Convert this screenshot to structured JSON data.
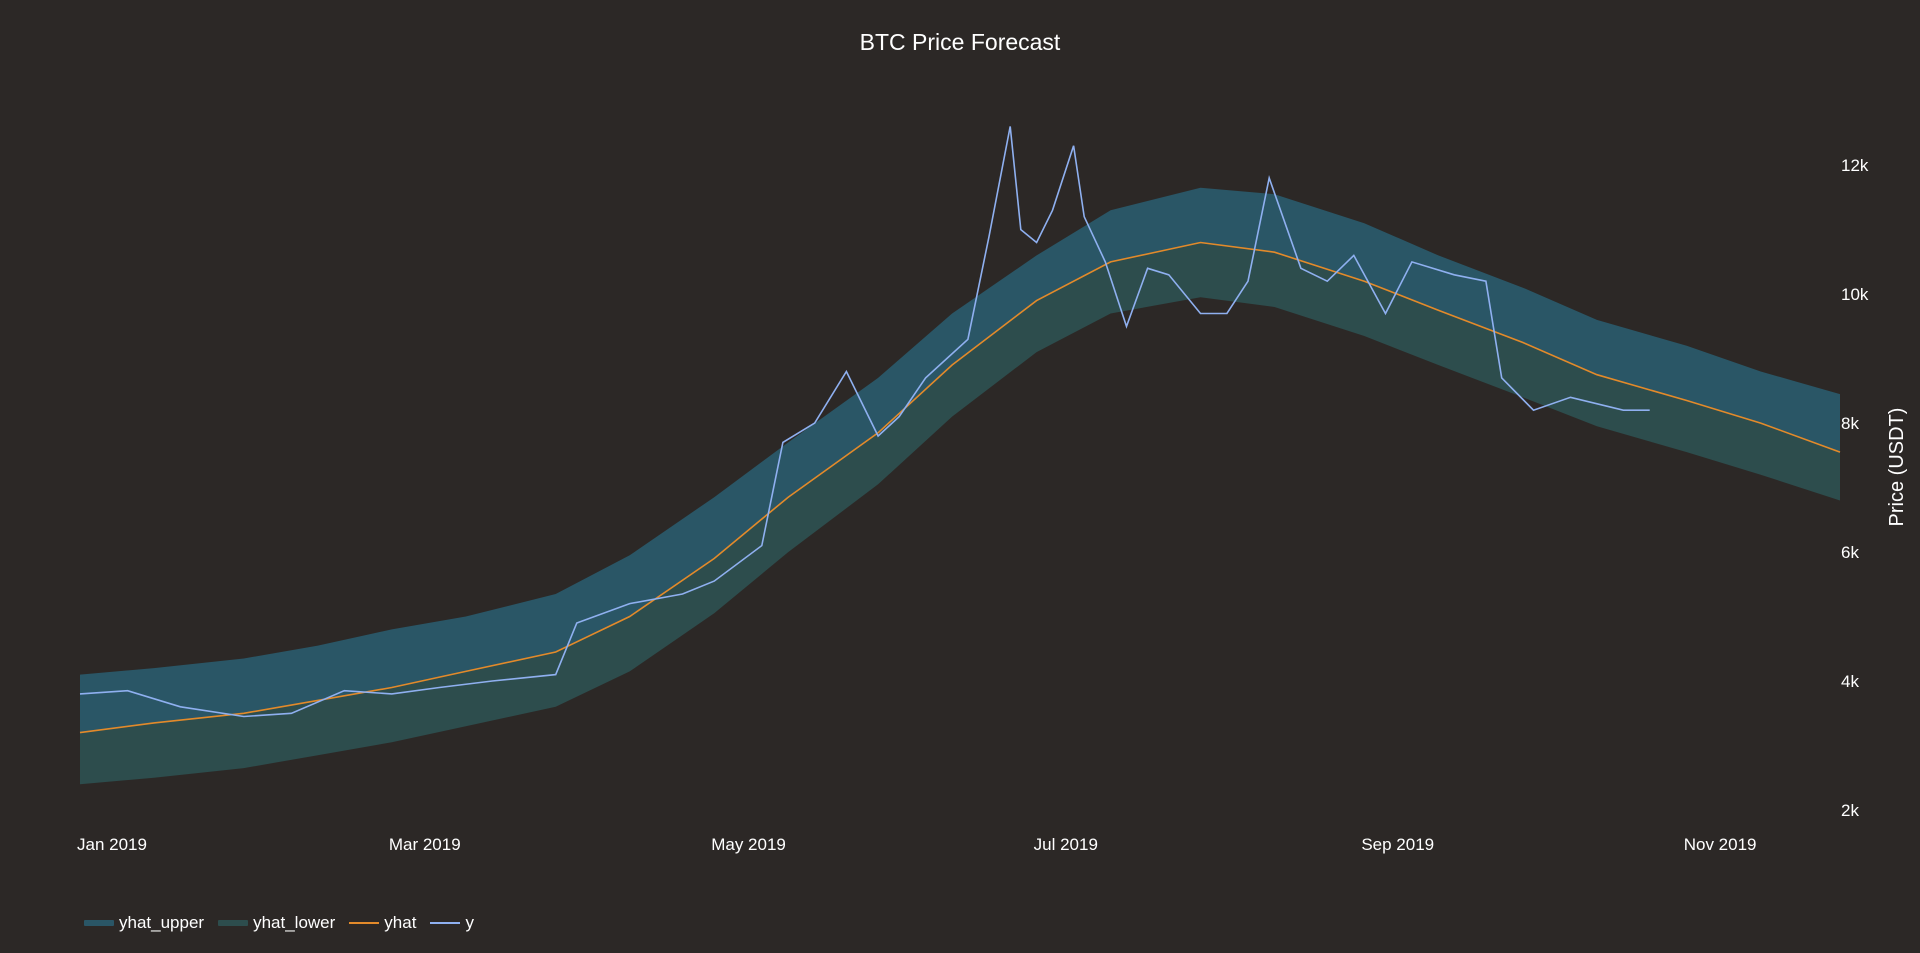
{
  "chart_data": {
    "type": "line",
    "title": "BTC Price Forecast",
    "xlabel": "",
    "ylabel": "Price (USDT)",
    "x_range": [
      "2019-01-01",
      "2019-11-30"
    ],
    "ylim": [
      2000,
      12700
    ],
    "x_ticks": [
      {
        "date": "2019-01-01",
        "label": "Jan 2019"
      },
      {
        "date": "2019-03-01",
        "label": "Mar 2019"
      },
      {
        "date": "2019-05-01",
        "label": "May 2019"
      },
      {
        "date": "2019-07-01",
        "label": "Jul 2019"
      },
      {
        "date": "2019-09-01",
        "label": "Sep 2019"
      },
      {
        "date": "2019-11-01",
        "label": "Nov 2019"
      }
    ],
    "y_ticks": [
      {
        "value": 2000,
        "label": "2k"
      },
      {
        "value": 4000,
        "label": "4k"
      },
      {
        "value": 6000,
        "label": "6k"
      },
      {
        "value": 8000,
        "label": "8k"
      },
      {
        "value": 10000,
        "label": "10k"
      },
      {
        "value": 12000,
        "label": "12k"
      }
    ],
    "y_axis_position": "right",
    "grid": false,
    "legend_position": "bottom-left",
    "series": [
      {
        "name": "yhat_upper",
        "kind": "band-top",
        "color": "#2a5666",
        "x": [
          "2019-01-01",
          "2019-01-15",
          "2019-02-01",
          "2019-02-15",
          "2019-03-01",
          "2019-03-15",
          "2019-04-01",
          "2019-04-15",
          "2019-05-01",
          "2019-05-15",
          "2019-06-01",
          "2019-06-15",
          "2019-07-01",
          "2019-07-15",
          "2019-08-01",
          "2019-08-15",
          "2019-09-01",
          "2019-09-15",
          "2019-10-01",
          "2019-10-15",
          "2019-11-01",
          "2019-11-15",
          "2019-11-30"
        ],
        "values": [
          4100,
          4200,
          4350,
          4550,
          4800,
          5000,
          5350,
          5950,
          6850,
          7700,
          8700,
          9700,
          10600,
          11300,
          11650,
          11550,
          11100,
          10600,
          10100,
          9600,
          9200,
          8800,
          8450
        ]
      },
      {
        "name": "yhat_lower",
        "kind": "band-bottom",
        "color": "#2d4d4d",
        "x": [
          "2019-01-01",
          "2019-01-15",
          "2019-02-01",
          "2019-02-15",
          "2019-03-01",
          "2019-03-15",
          "2019-04-01",
          "2019-04-15",
          "2019-05-01",
          "2019-05-15",
          "2019-06-01",
          "2019-06-15",
          "2019-07-01",
          "2019-07-15",
          "2019-08-01",
          "2019-08-15",
          "2019-09-01",
          "2019-09-15",
          "2019-10-01",
          "2019-10-15",
          "2019-11-01",
          "2019-11-15",
          "2019-11-30"
        ],
        "values": [
          2400,
          2500,
          2650,
          2850,
          3050,
          3300,
          3600,
          4150,
          5050,
          6000,
          7050,
          8100,
          9100,
          9700,
          9950,
          9800,
          9350,
          8900,
          8400,
          7950,
          7550,
          7200,
          6800
        ]
      },
      {
        "name": "yhat",
        "kind": "line",
        "color": "#e38a2a",
        "x": [
          "2019-01-01",
          "2019-01-15",
          "2019-02-01",
          "2019-02-15",
          "2019-03-01",
          "2019-03-15",
          "2019-04-01",
          "2019-04-15",
          "2019-05-01",
          "2019-05-15",
          "2019-06-01",
          "2019-06-15",
          "2019-07-01",
          "2019-07-15",
          "2019-08-01",
          "2019-08-15",
          "2019-09-01",
          "2019-09-15",
          "2019-10-01",
          "2019-10-15",
          "2019-11-01",
          "2019-11-15",
          "2019-11-30"
        ],
        "values": [
          3200,
          3350,
          3500,
          3700,
          3900,
          4150,
          4450,
          5000,
          5900,
          6850,
          7850,
          8900,
          9900,
          10500,
          10800,
          10650,
          10200,
          9750,
          9250,
          8750,
          8350,
          8000,
          7550
        ]
      },
      {
        "name": "y",
        "kind": "line",
        "color": "#8fb0f0",
        "x": [
          "2019-01-01",
          "2019-01-10",
          "2019-01-20",
          "2019-02-01",
          "2019-02-10",
          "2019-02-20",
          "2019-03-01",
          "2019-03-10",
          "2019-03-20",
          "2019-04-01",
          "2019-04-05",
          "2019-04-15",
          "2019-04-25",
          "2019-05-01",
          "2019-05-10",
          "2019-05-14",
          "2019-05-20",
          "2019-05-26",
          "2019-06-01",
          "2019-06-05",
          "2019-06-10",
          "2019-06-18",
          "2019-06-22",
          "2019-06-26",
          "2019-06-28",
          "2019-07-01",
          "2019-07-04",
          "2019-07-08",
          "2019-07-10",
          "2019-07-14",
          "2019-07-18",
          "2019-07-22",
          "2019-07-26",
          "2019-08-01",
          "2019-08-06",
          "2019-08-10",
          "2019-08-14",
          "2019-08-20",
          "2019-08-25",
          "2019-08-30",
          "2019-09-05",
          "2019-09-10",
          "2019-09-18",
          "2019-09-24",
          "2019-09-27",
          "2019-10-03",
          "2019-10-10",
          "2019-10-20",
          "2019-10-25"
        ],
        "values": [
          3800,
          3850,
          3600,
          3450,
          3500,
          3850,
          3800,
          3900,
          4000,
          4100,
          4900,
          5200,
          5350,
          5550,
          6100,
          7700,
          8000,
          8800,
          7800,
          8100,
          8700,
          9300,
          10900,
          12600,
          11000,
          10800,
          11300,
          12300,
          11200,
          10500,
          9500,
          10400,
          10300,
          9700,
          9700,
          10200,
          11800,
          10400,
          10200,
          10600,
          9700,
          10500,
          10300,
          10200,
          8700,
          8200,
          8400,
          8200,
          8200
        ]
      }
    ]
  }
}
